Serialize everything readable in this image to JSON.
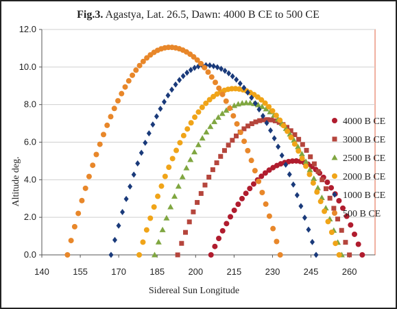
{
  "chart_data": {
    "type": "scatter",
    "title_bold": "Fig.3.",
    "title_rest": " Agastya, Lat. 26.5, Dawn: 4000 B CE to 500 CE",
    "xlabel": "Sidereal Sun Longitude",
    "ylabel": "Altitude deg.",
    "xlim": [
      140,
      270
    ],
    "ylim": [
      0,
      12
    ],
    "xticks": [
      "140",
      "155",
      "170",
      "185",
      "200",
      "215",
      "230",
      "245",
      "260"
    ],
    "xtick_values": [
      140,
      155,
      170,
      185,
      200,
      215,
      230,
      245,
      260
    ],
    "yticks": [
      "0.0",
      "2.0",
      "4.0",
      "6.0",
      "8.0",
      "10.0",
      "12.0"
    ],
    "ytick_values": [
      0,
      2,
      4,
      6,
      8,
      10,
      12
    ],
    "legend_position": "right",
    "series": [
      {
        "name": "4000 B CE",
        "marker": "circle",
        "color": "#b01c2e",
        "x_start": 206,
        "x_end": 265,
        "peak_x": 239,
        "peak_y": 5.0,
        "n": 40
      },
      {
        "name": "3000 B CE",
        "marker": "square",
        "color": "#b5453c",
        "x_start": 193,
        "x_end": 260,
        "peak_x": 228,
        "peak_y": 7.2,
        "n": 45
      },
      {
        "name": "2500 B CE",
        "marker": "triangle",
        "color": "#7fa640",
        "x_start": 184,
        "x_end": 257,
        "peak_x": 220,
        "peak_y": 8.1,
        "n": 48
      },
      {
        "name": "2000 B CE",
        "marker": "circle",
        "color": "#f0a418",
        "x_start": 178,
        "x_end": 256,
        "peak_x": 215,
        "peak_y": 8.85,
        "n": 55
      },
      {
        "name": "1000 B CE",
        "marker": "diamond",
        "color": "#1a3a7a",
        "x_start": 167,
        "x_end": 247,
        "peak_x": 204,
        "peak_y": 10.1,
        "n": 55
      },
      {
        "name": "500 B CE",
        "marker": "circle",
        "color": "#e8872a",
        "x_start": 150,
        "x_end": 233,
        "peak_x": 190,
        "peak_y": 11.05,
        "n": 60
      }
    ]
  }
}
